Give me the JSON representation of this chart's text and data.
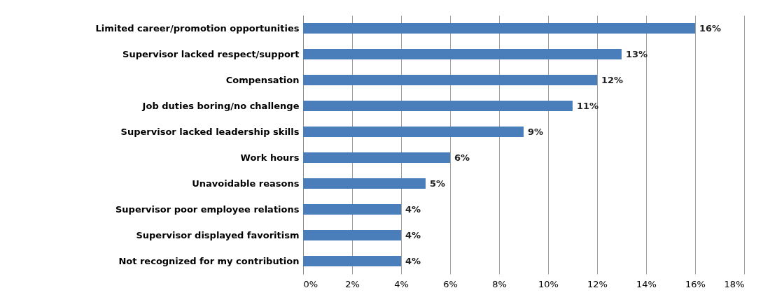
{
  "chart_data": {
    "type": "bar",
    "orientation": "horizontal",
    "categories": [
      "Limited career/promotion opportunities",
      "Supervisor lacked respect/support",
      "Compensation",
      "Job duties boring/no challenge",
      "Supervisor lacked leadership skills",
      "Work hours",
      "Unavoidable reasons",
      "Supervisor poor employee relations",
      "Supervisor displayed favoritism",
      "Not recognized for my contribution"
    ],
    "values": [
      16,
      13,
      12,
      11,
      9,
      6,
      5,
      4,
      4,
      4
    ],
    "value_labels": [
      "16%",
      "13%",
      "12%",
      "11%",
      "9%",
      "6%",
      "5%",
      "4%",
      "4%",
      "4%"
    ],
    "color": "#4a7ebb",
    "xlim": [
      0,
      18
    ],
    "xticks": [
      {
        "value": 0,
        "label": "0%"
      },
      {
        "value": 2,
        "label": "2%"
      },
      {
        "value": 4,
        "label": "4%"
      },
      {
        "value": 6,
        "label": "6%"
      },
      {
        "value": 8,
        "label": "8%"
      },
      {
        "value": 10,
        "label": "10%"
      },
      {
        "value": 12,
        "label": "12%"
      },
      {
        "value": 14,
        "label": "14%"
      },
      {
        "value": 16,
        "label": "16%"
      },
      {
        "value": 18,
        "label": "18%"
      }
    ],
    "grid": "x"
  }
}
